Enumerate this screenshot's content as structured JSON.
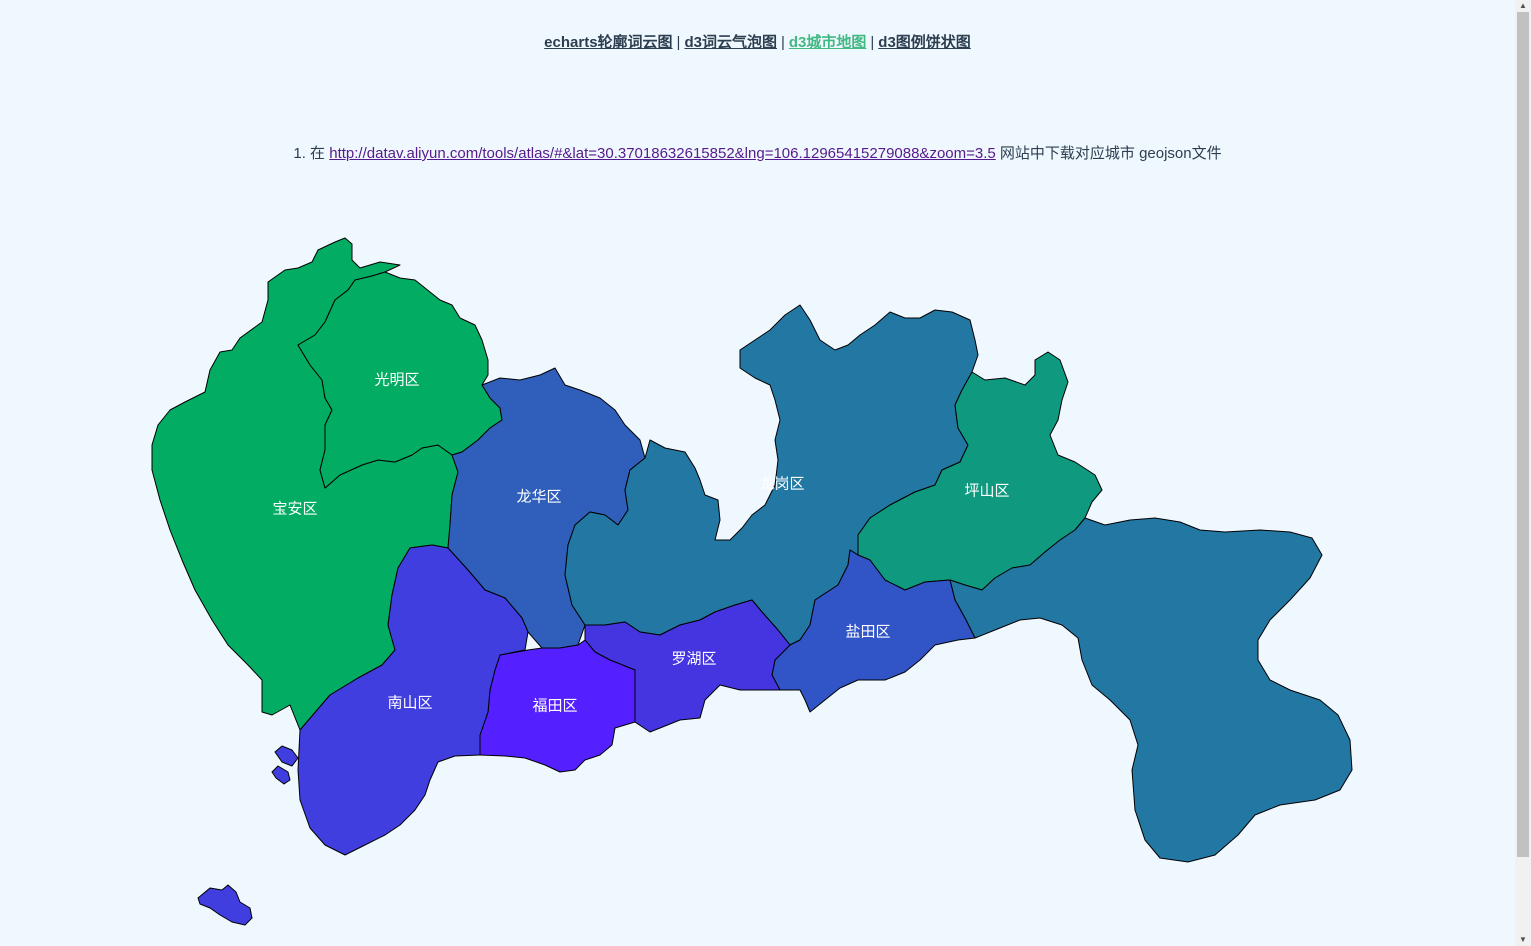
{
  "nav": {
    "links": [
      {
        "label": "echarts轮廓词云图",
        "active": false
      },
      {
        "label": "d3词云气泡图",
        "active": false
      },
      {
        "label": "d3城市地图",
        "active": true
      },
      {
        "label": "d3图例饼状图",
        "active": false
      }
    ],
    "separator": "|"
  },
  "instruction": {
    "prefix": "1. 在",
    "link_text": "http://datav.aliyun.com/tools/atlas/#&lat=30.37018632615852&lng=106.12965415279088&zoom=3.5",
    "suffix": "网站中下载对应城市 geojson文件"
  },
  "map": {
    "districts": [
      {
        "id": "baoan",
        "name": "宝安区",
        "color": "#02ac62"
      },
      {
        "id": "guangming",
        "name": "光明区",
        "color": "#02ac62"
      },
      {
        "id": "longhua",
        "name": "龙华区",
        "color": "#2f5fbb"
      },
      {
        "id": "longgang",
        "name": "龙岗区",
        "color": "#2277a3"
      },
      {
        "id": "pingshan",
        "name": "坪山区",
        "color": "#0f9a80"
      },
      {
        "id": "dapeng",
        "name": "",
        "color": "#2277a3"
      },
      {
        "id": "yantian",
        "name": "盐田区",
        "color": "#3154c6"
      },
      {
        "id": "luohu",
        "name": "罗湖区",
        "color": "#4435e0"
      },
      {
        "id": "futian",
        "name": "福田区",
        "color": "#5420ff"
      },
      {
        "id": "nanshan",
        "name": "南山区",
        "color": "#403edf"
      }
    ]
  }
}
